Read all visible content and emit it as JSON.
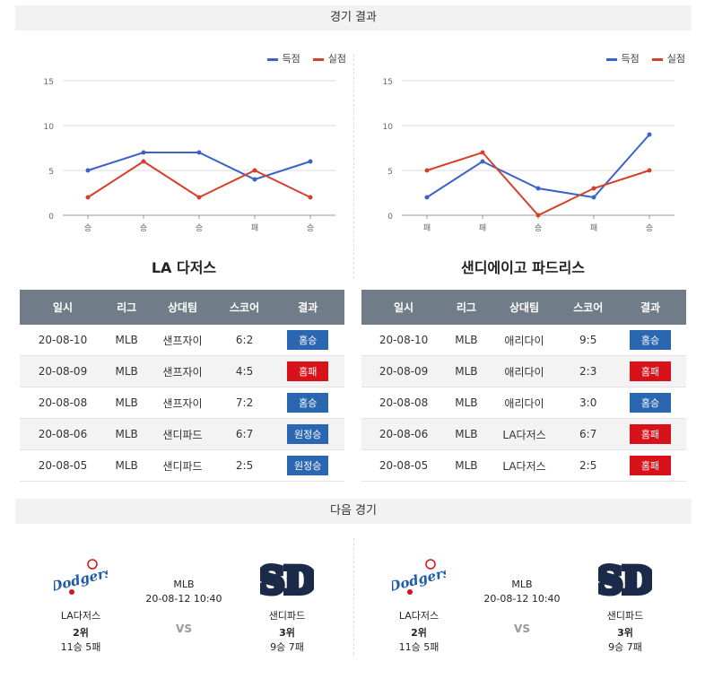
{
  "sections": {
    "results_title": "경기 결과",
    "next_title": "다음 경기"
  },
  "legend": {
    "score": "득점",
    "allowed": "실점"
  },
  "colors": {
    "score": "#3a63c8",
    "allowed": "#d5402b",
    "win": "#2a67b0",
    "lose": "#d8121b"
  },
  "chart_data": [
    {
      "type": "line",
      "title": "LA 다저스",
      "categories": [
        "승",
        "승",
        "승",
        "패",
        "승"
      ],
      "series": [
        {
          "name": "득점",
          "values": [
            5,
            7,
            7,
            4,
            6
          ]
        },
        {
          "name": "실점",
          "values": [
            2,
            6,
            2,
            5,
            2
          ]
        }
      ],
      "ylim": [
        0,
        15
      ],
      "yticks": [
        0,
        5,
        10,
        15
      ]
    },
    {
      "type": "line",
      "title": "샌디에이고 파드리스",
      "categories": [
        "패",
        "패",
        "승",
        "패",
        "승"
      ],
      "series": [
        {
          "name": "득점",
          "values": [
            2,
            6,
            3,
            2,
            9
          ]
        },
        {
          "name": "실점",
          "values": [
            5,
            7,
            0,
            3,
            5
          ]
        }
      ],
      "ylim": [
        0,
        15
      ],
      "yticks": [
        0,
        5,
        10,
        15
      ]
    }
  ],
  "teams": [
    {
      "title": "LA 다저스"
    },
    {
      "title": "샌디에이고 파드리스"
    }
  ],
  "table_headers": [
    "일시",
    "리그",
    "상대팀",
    "스코어",
    "결과"
  ],
  "tables": [
    [
      {
        "date": "20-08-10",
        "league": "MLB",
        "opponent": "샌프자이",
        "score": "6:2",
        "result": "홈승",
        "win": true
      },
      {
        "date": "20-08-09",
        "league": "MLB",
        "opponent": "샌프자이",
        "score": "4:5",
        "result": "홈패",
        "win": false
      },
      {
        "date": "20-08-08",
        "league": "MLB",
        "opponent": "샌프자이",
        "score": "7:2",
        "result": "홈승",
        "win": true
      },
      {
        "date": "20-08-06",
        "league": "MLB",
        "opponent": "샌디파드",
        "score": "6:7",
        "result": "원정승",
        "win": true
      },
      {
        "date": "20-08-05",
        "league": "MLB",
        "opponent": "샌디파드",
        "score": "2:5",
        "result": "원정승",
        "win": true
      }
    ],
    [
      {
        "date": "20-08-10",
        "league": "MLB",
        "opponent": "애리다이",
        "score": "9:5",
        "result": "홈승",
        "win": true
      },
      {
        "date": "20-08-09",
        "league": "MLB",
        "opponent": "애리다이",
        "score": "2:3",
        "result": "홈패",
        "win": false
      },
      {
        "date": "20-08-08",
        "league": "MLB",
        "opponent": "애리다이",
        "score": "3:0",
        "result": "홈승",
        "win": true
      },
      {
        "date": "20-08-06",
        "league": "MLB",
        "opponent": "LA다저스",
        "score": "6:7",
        "result": "홈패",
        "win": false
      },
      {
        "date": "20-08-05",
        "league": "MLB",
        "opponent": "LA다저스",
        "score": "2:5",
        "result": "홈패",
        "win": false
      }
    ]
  ],
  "next_games": [
    {
      "league": "MLB",
      "datetime": "20-08-12 10:40",
      "vs": "VS",
      "home": {
        "name": "LA다저스",
        "rank": "2위",
        "record": "11승 5패",
        "logo_text": "Dodgers"
      },
      "away": {
        "name": "샌디파드",
        "rank": "3위",
        "record": "9승 7패",
        "logo_text": "SD"
      }
    },
    {
      "league": "MLB",
      "datetime": "20-08-12 10:40",
      "vs": "VS",
      "home": {
        "name": "LA다저스",
        "rank": "2위",
        "record": "11승 5패",
        "logo_text": "Dodgers"
      },
      "away": {
        "name": "샌디파드",
        "rank": "3위",
        "record": "9승 7패",
        "logo_text": "SD"
      }
    }
  ]
}
